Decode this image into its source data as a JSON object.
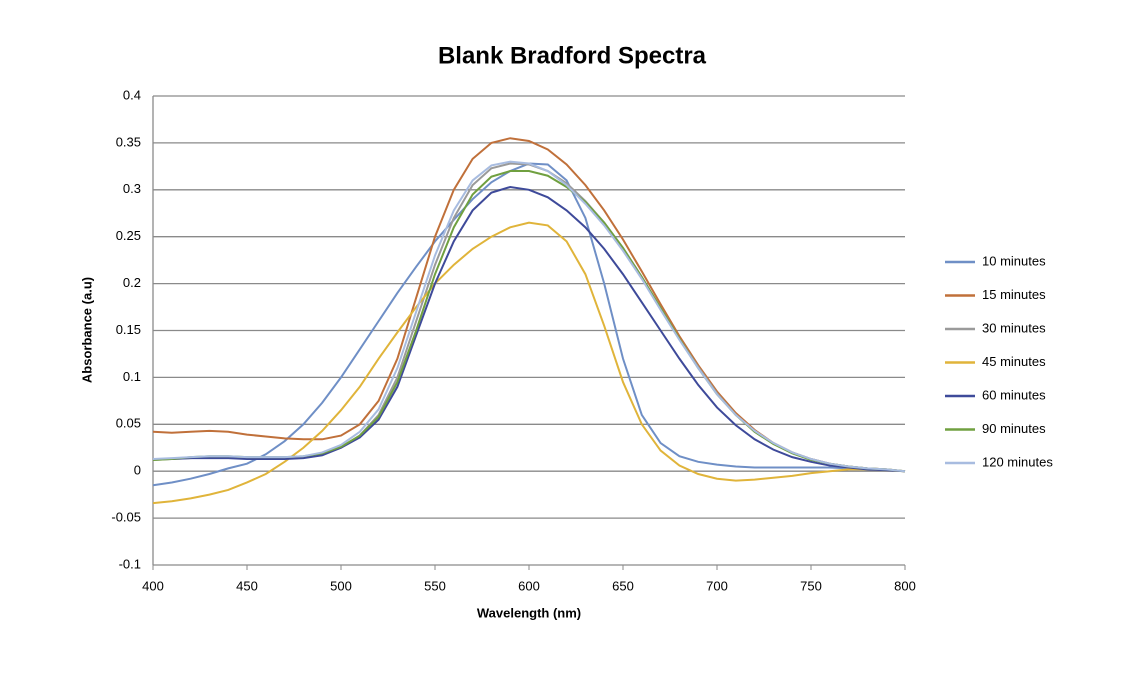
{
  "chart_data": {
    "type": "line",
    "title": "Blank Bradford Spectra",
    "x_label": "Wavelength (nm)",
    "y_label": "Absorbance (a.u)",
    "x": [
      400,
      410,
      420,
      430,
      440,
      450,
      460,
      470,
      480,
      490,
      500,
      510,
      520,
      530,
      540,
      550,
      560,
      570,
      580,
      590,
      600,
      610,
      620,
      630,
      640,
      650,
      660,
      670,
      680,
      690,
      700,
      710,
      720,
      730,
      740,
      750,
      760,
      770,
      780,
      790,
      800
    ],
    "xlim": [
      400,
      800
    ],
    "xticks": [
      400,
      450,
      500,
      550,
      600,
      650,
      700,
      750,
      800
    ],
    "ylim": [
      -0.1,
      0.4
    ],
    "yticks": [
      -0.1,
      -0.05,
      0,
      0.05,
      0.1,
      0.15,
      0.2,
      0.25,
      0.3,
      0.35,
      0.4
    ],
    "grid": true,
    "legend": "right",
    "series": [
      {
        "name": "10 minutes",
        "color": "#6f8fc6",
        "values": [
          -0.015,
          -0.012,
          -0.008,
          -0.003,
          0.003,
          0.008,
          0.018,
          0.032,
          0.05,
          0.073,
          0.1,
          0.13,
          0.16,
          0.19,
          0.218,
          0.245,
          0.268,
          0.29,
          0.308,
          0.32,
          0.328,
          0.327,
          0.31,
          0.27,
          0.2,
          0.12,
          0.06,
          0.03,
          0.016,
          0.01,
          0.007,
          0.005,
          0.004,
          0.004,
          0.004,
          0.004,
          0.004,
          0.003,
          0.002,
          0.001,
          0
        ]
      },
      {
        "name": "15 minutes",
        "color": "#c0703a",
        "values": [
          0.042,
          0.041,
          0.042,
          0.043,
          0.042,
          0.039,
          0.037,
          0.035,
          0.034,
          0.034,
          0.038,
          0.05,
          0.075,
          0.12,
          0.185,
          0.25,
          0.3,
          0.333,
          0.35,
          0.355,
          0.352,
          0.343,
          0.327,
          0.305,
          0.278,
          0.247,
          0.213,
          0.178,
          0.144,
          0.113,
          0.085,
          0.062,
          0.044,
          0.03,
          0.02,
          0.013,
          0.008,
          0.005,
          0.003,
          0.002,
          0
        ]
      },
      {
        "name": "30 minutes",
        "color": "#9a9a9a",
        "values": [
          0.012,
          0.013,
          0.014,
          0.015,
          0.015,
          0.014,
          0.014,
          0.014,
          0.015,
          0.018,
          0.025,
          0.038,
          0.06,
          0.1,
          0.16,
          0.22,
          0.27,
          0.305,
          0.323,
          0.328,
          0.327,
          0.32,
          0.307,
          0.288,
          0.265,
          0.238,
          0.207,
          0.174,
          0.141,
          0.111,
          0.083,
          0.06,
          0.043,
          0.03,
          0.02,
          0.013,
          0.008,
          0.005,
          0.003,
          0.002,
          0
        ]
      },
      {
        "name": "45 minutes",
        "color": "#e0b43a",
        "values": [
          -0.034,
          -0.032,
          -0.029,
          -0.025,
          -0.02,
          -0.012,
          -0.003,
          0.01,
          0.025,
          0.043,
          0.065,
          0.09,
          0.12,
          0.148,
          0.175,
          0.2,
          0.22,
          0.237,
          0.25,
          0.26,
          0.265,
          0.262,
          0.245,
          0.21,
          0.155,
          0.095,
          0.05,
          0.022,
          0.006,
          -0.003,
          -0.008,
          -0.01,
          -0.009,
          -0.007,
          -0.005,
          -0.002,
          0,
          0.002,
          0.002,
          0.001,
          0
        ]
      },
      {
        "name": "60 minutes",
        "color": "#3e4a9a",
        "values": [
          0.013,
          0.013,
          0.014,
          0.014,
          0.014,
          0.013,
          0.013,
          0.013,
          0.014,
          0.017,
          0.025,
          0.036,
          0.055,
          0.09,
          0.145,
          0.2,
          0.245,
          0.278,
          0.297,
          0.303,
          0.3,
          0.292,
          0.278,
          0.26,
          0.237,
          0.21,
          0.18,
          0.15,
          0.12,
          0.092,
          0.068,
          0.049,
          0.034,
          0.023,
          0.015,
          0.01,
          0.006,
          0.004,
          0.002,
          0.001,
          0
        ]
      },
      {
        "name": "90 minutes",
        "color": "#70a040",
        "values": [
          0.012,
          0.013,
          0.015,
          0.016,
          0.016,
          0.015,
          0.015,
          0.015,
          0.016,
          0.019,
          0.026,
          0.038,
          0.058,
          0.095,
          0.15,
          0.21,
          0.26,
          0.295,
          0.314,
          0.32,
          0.32,
          0.315,
          0.303,
          0.287,
          0.265,
          0.238,
          0.207,
          0.174,
          0.141,
          0.11,
          0.082,
          0.06,
          0.042,
          0.029,
          0.019,
          0.012,
          0.008,
          0.005,
          0.003,
          0.002,
          0
        ]
      },
      {
        "name": "120 minutes",
        "color": "#a8bce0",
        "values": [
          0.013,
          0.014,
          0.015,
          0.016,
          0.016,
          0.015,
          0.015,
          0.015,
          0.016,
          0.02,
          0.028,
          0.042,
          0.066,
          0.11,
          0.17,
          0.23,
          0.278,
          0.31,
          0.326,
          0.33,
          0.328,
          0.32,
          0.305,
          0.285,
          0.262,
          0.235,
          0.205,
          0.172,
          0.14,
          0.11,
          0.082,
          0.06,
          0.043,
          0.03,
          0.02,
          0.013,
          0.008,
          0.005,
          0.003,
          0.002,
          0
        ]
      }
    ]
  }
}
